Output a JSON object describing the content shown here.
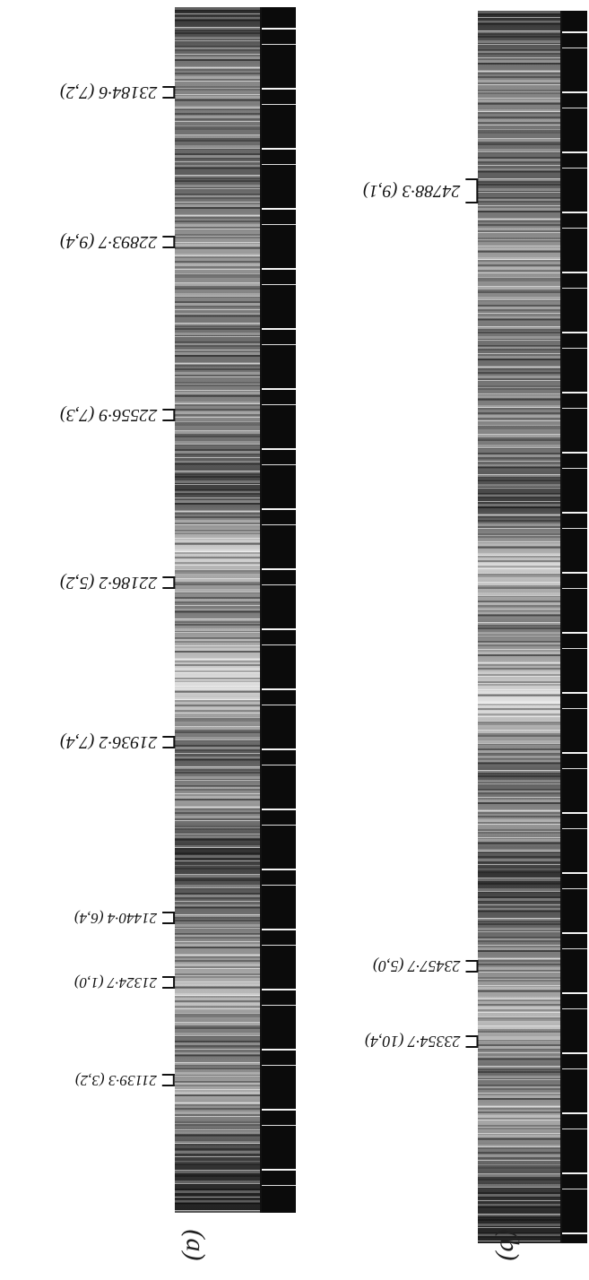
{
  "figure": {
    "panels": [
      {
        "label": "(a)",
        "lines": [
          {
            "label": "23184·6 (7,2)"
          },
          {
            "label": "22893·7 (9,4)"
          },
          {
            "label": "22556·9 (7,3)"
          },
          {
            "label": "22186·2 (5,2)"
          },
          {
            "label": "21936·2 (7,4)"
          },
          {
            "label": "21440·4 (6,4)"
          },
          {
            "label": "21324·7 (1,0)"
          },
          {
            "label": "21139·3 (3,2)"
          }
        ]
      },
      {
        "label": "(b)",
        "lines": [
          {
            "label": "24788·3 (9,1)"
          },
          {
            "label": "23457·7 (5,0)"
          },
          {
            "label": "23354·7 (10,4)"
          }
        ]
      }
    ]
  }
}
